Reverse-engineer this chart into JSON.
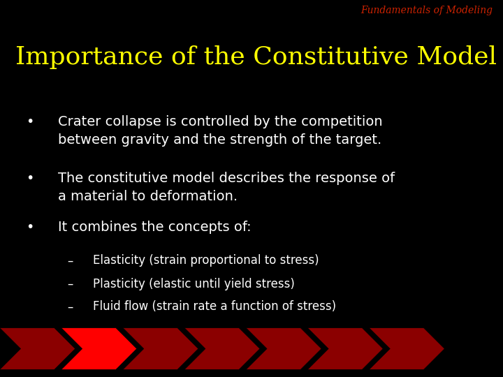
{
  "background_color": "#000000",
  "header_text": "Fundamentals of Modeling",
  "header_color": "#cc2200",
  "header_fontsize": 10,
  "title_text": "Importance of the Constitutive Model",
  "title_color": "#ffff00",
  "title_fontsize": 26,
  "bullet_color": "#ffffff",
  "bullet_fontsize": 14,
  "sub_fontsize": 12,
  "bullets": [
    "Crater collapse is controlled by the competition\nbetween gravity and the strength of the target.",
    "The constitutive model describes the response of\na material to deformation.",
    "It combines the concepts of:"
  ],
  "sub_bullets": [
    "Elasticity (strain proportional to stress)",
    "Plasticity (elastic until yield stress)",
    "Fluid flow (strain rate a function of stress)"
  ],
  "arrow_colors_seq": [
    "#8b0000",
    "#ff0000",
    "#8b0000",
    "#8b0000",
    "#8b0000",
    "#8b0000",
    "#8b0000"
  ]
}
